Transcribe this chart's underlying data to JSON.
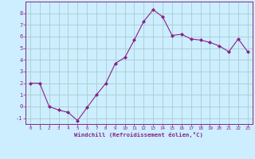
{
  "x": [
    0,
    1,
    2,
    3,
    4,
    5,
    6,
    7,
    8,
    9,
    10,
    11,
    12,
    13,
    14,
    15,
    16,
    17,
    18,
    19,
    20,
    21,
    22,
    23
  ],
  "y": [
    2.0,
    2.0,
    0.0,
    -0.3,
    -0.5,
    -1.2,
    -0.1,
    1.0,
    2.0,
    3.7,
    4.2,
    5.7,
    7.3,
    8.3,
    7.7,
    6.1,
    6.2,
    5.8,
    5.7,
    5.5,
    5.2,
    4.7,
    5.8,
    4.7
  ],
  "line_color": "#882288",
  "marker_color": "#882288",
  "bg_color": "#cceeff",
  "grid_color": "#aacccc",
  "axis_color": "#882288",
  "tick_color": "#882288",
  "xlabel": "Windchill (Refroidissement éolien,°C)",
  "xlabel_color": "#882288",
  "ylim": [
    -1.5,
    9.0
  ],
  "xlim": [
    -0.5,
    23.5
  ],
  "yticks": [
    -1,
    0,
    1,
    2,
    3,
    4,
    5,
    6,
    7,
    8
  ],
  "xticks": [
    0,
    1,
    2,
    3,
    4,
    5,
    6,
    7,
    8,
    9,
    10,
    11,
    12,
    13,
    14,
    15,
    16,
    17,
    18,
    19,
    20,
    21,
    22,
    23
  ]
}
